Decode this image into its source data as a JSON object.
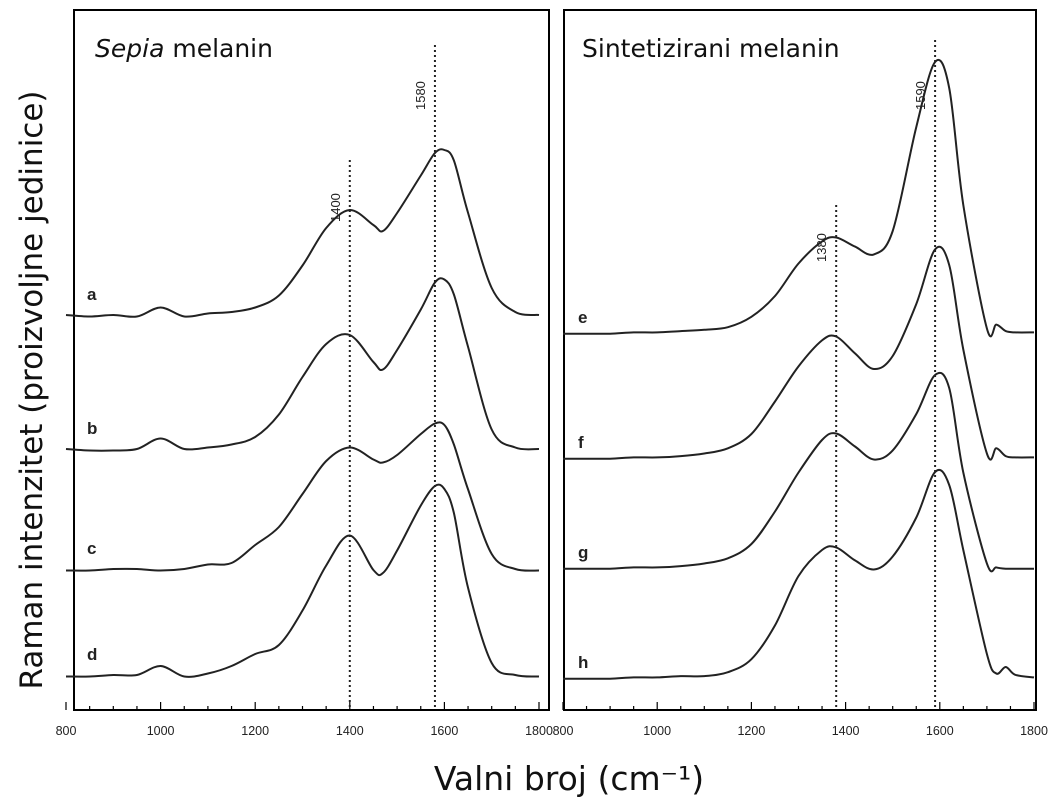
{
  "y_axis_label": "Raman intenzitet (proizvoljne jedinice)",
  "x_axis_label": "Valni broj (cm⁻¹)",
  "chart_data": [
    {
      "type": "line",
      "title_italic": "Sepia",
      "title_rest": " melanin",
      "xlim": [
        800,
        1800
      ],
      "xticks": [
        "800",
        "1000",
        "1200",
        "1400",
        "1600",
        "1800"
      ],
      "reference_lines": [
        {
          "x": 1400,
          "label": "1400"
        },
        {
          "x": 1580,
          "label": "1580"
        }
      ],
      "series": [
        {
          "name": "a",
          "x": [
            800,
            850,
            900,
            950,
            1000,
            1050,
            1100,
            1150,
            1200,
            1250,
            1300,
            1350,
            1400,
            1450,
            1470,
            1500,
            1550,
            1580,
            1600,
            1620,
            1650,
            1700,
            1750,
            1800
          ],
          "y": [
            0.02,
            0.01,
            0.02,
            0.01,
            0.07,
            0.01,
            0.03,
            0.04,
            0.07,
            0.15,
            0.35,
            0.6,
            0.72,
            0.62,
            0.58,
            0.7,
            0.95,
            1.1,
            1.12,
            1.05,
            0.7,
            0.2,
            0.04,
            0.02
          ]
        },
        {
          "name": "b",
          "x": [
            800,
            850,
            900,
            950,
            1000,
            1050,
            1100,
            1150,
            1200,
            1250,
            1300,
            1350,
            1400,
            1450,
            1470,
            1500,
            1550,
            1580,
            1600,
            1620,
            1650,
            1700,
            1750,
            1800
          ],
          "y": [
            0.02,
            0.01,
            0.01,
            0.02,
            0.09,
            0.02,
            0.03,
            0.05,
            0.1,
            0.25,
            0.5,
            0.72,
            0.78,
            0.6,
            0.55,
            0.68,
            0.95,
            1.13,
            1.15,
            1.05,
            0.7,
            0.15,
            0.03,
            0.02
          ]
        },
        {
          "name": "c",
          "x": [
            800,
            850,
            900,
            950,
            1000,
            1050,
            1100,
            1150,
            1200,
            1250,
            1300,
            1350,
            1400,
            1450,
            1470,
            1500,
            1550,
            1580,
            1600,
            1620,
            1650,
            1700,
            1750,
            1800
          ],
          "y": [
            0.01,
            0.01,
            0.02,
            0.02,
            0.01,
            0.02,
            0.05,
            0.06,
            0.18,
            0.3,
            0.52,
            0.74,
            0.83,
            0.75,
            0.73,
            0.78,
            0.92,
            0.99,
            0.98,
            0.85,
            0.55,
            0.12,
            0.02,
            0.01
          ]
        },
        {
          "name": "d",
          "x": [
            800,
            850,
            900,
            950,
            1000,
            1050,
            1100,
            1150,
            1200,
            1250,
            1300,
            1350,
            1400,
            1450,
            1470,
            1500,
            1550,
            1580,
            1600,
            1620,
            1650,
            1700,
            1750,
            1800
          ],
          "y": [
            0.01,
            0.01,
            0.02,
            0.02,
            0.08,
            0.01,
            0.03,
            0.08,
            0.16,
            0.22,
            0.45,
            0.75,
            0.95,
            0.72,
            0.7,
            0.85,
            1.15,
            1.28,
            1.26,
            1.1,
            0.6,
            0.1,
            0.02,
            0.01
          ]
        }
      ]
    },
    {
      "type": "line",
      "title_italic": "",
      "title_rest": "Sintetizirani melanin",
      "xlim": [
        800,
        1800
      ],
      "xticks": [
        "800",
        "1000",
        "1200",
        "1400",
        "1600",
        "1800"
      ],
      "reference_lines": [
        {
          "x": 1380,
          "label": "1380"
        },
        {
          "x": 1590,
          "label": "1590"
        }
      ],
      "series": [
        {
          "name": "e",
          "x": [
            800,
            850,
            900,
            950,
            1000,
            1050,
            1100,
            1150,
            1200,
            1250,
            1300,
            1350,
            1380,
            1420,
            1460,
            1500,
            1550,
            1590,
            1620,
            1650,
            1700,
            1720,
            1740,
            1760,
            1800
          ],
          "y": [
            0.01,
            0.01,
            0.01,
            0.02,
            0.02,
            0.03,
            0.04,
            0.06,
            0.14,
            0.3,
            0.55,
            0.72,
            0.75,
            0.68,
            0.62,
            0.8,
            1.6,
            2.1,
            1.9,
            1.0,
            0.05,
            0.08,
            0.03,
            0.02,
            0.02
          ]
        },
        {
          "name": "f",
          "x": [
            800,
            850,
            900,
            950,
            1000,
            1050,
            1100,
            1150,
            1200,
            1250,
            1300,
            1350,
            1380,
            1420,
            1460,
            1500,
            1550,
            1590,
            1620,
            1650,
            1700,
            1720,
            1740,
            1760,
            1800
          ],
          "y": [
            0.01,
            0.01,
            0.01,
            0.02,
            0.02,
            0.03,
            0.05,
            0.09,
            0.2,
            0.45,
            0.72,
            0.92,
            0.95,
            0.82,
            0.7,
            0.8,
            1.2,
            1.62,
            1.5,
            0.85,
            0.05,
            0.09,
            0.03,
            0.02,
            0.02
          ]
        },
        {
          "name": "g",
          "x": [
            800,
            850,
            900,
            950,
            1000,
            1050,
            1100,
            1150,
            1200,
            1250,
            1300,
            1350,
            1380,
            1420,
            1460,
            1500,
            1550,
            1590,
            1620,
            1650,
            1700,
            1720,
            1740,
            1760,
            1800
          ],
          "y": [
            0.01,
            0.01,
            0.01,
            0.02,
            0.02,
            0.03,
            0.05,
            0.09,
            0.2,
            0.45,
            0.75,
            1.0,
            1.05,
            0.95,
            0.85,
            0.92,
            1.2,
            1.5,
            1.4,
            0.75,
            0.05,
            0.02,
            0.01,
            0.01,
            0.01
          ]
        },
        {
          "name": "h",
          "x": [
            800,
            850,
            900,
            950,
            1000,
            1050,
            1100,
            1150,
            1200,
            1250,
            1300,
            1350,
            1380,
            1420,
            1460,
            1500,
            1550,
            1590,
            1620,
            1650,
            1700,
            1720,
            1740,
            1760,
            1800
          ],
          "y": [
            0.01,
            0.01,
            0.01,
            0.02,
            0.02,
            0.03,
            0.03,
            0.06,
            0.16,
            0.42,
            0.8,
            1.0,
            1.02,
            0.92,
            0.85,
            0.95,
            1.25,
            1.6,
            1.5,
            1.0,
            0.2,
            0.05,
            0.1,
            0.04,
            0.02
          ]
        }
      ]
    }
  ]
}
